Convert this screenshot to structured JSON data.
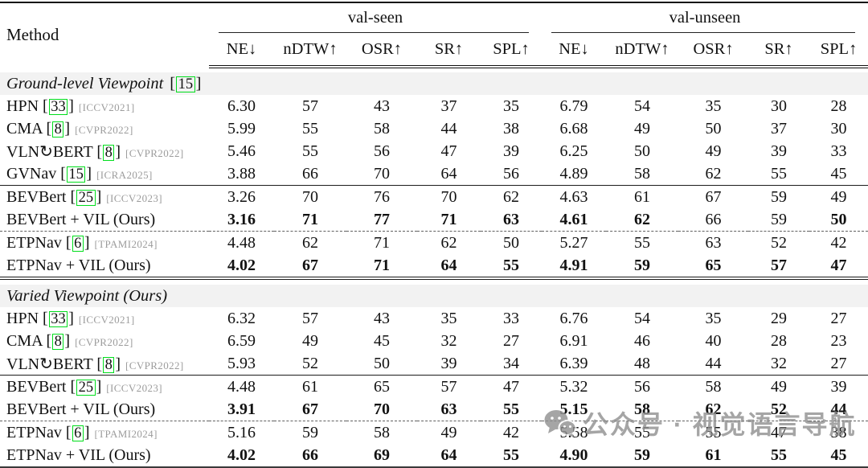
{
  "table": {
    "method_header": "Method",
    "groups": [
      {
        "label": "val-seen"
      },
      {
        "label": "val-unseen"
      }
    ],
    "metrics": [
      "NE↓",
      "nDTW↑",
      "OSR↑",
      "SR↑",
      "SPL↑"
    ],
    "metric_slugs": [
      "ne",
      "ndtw",
      "osr",
      "sr",
      "spl"
    ],
    "cite_box_color": "#00dd1c",
    "section_bg_color": "#f2f2f2",
    "venue_color": "#9c9c9c",
    "sections": [
      {
        "title": "Ground-level Viewpoint",
        "cite": "15",
        "blocks": [
          [
            {
              "name": "HPN",
              "cite": "33",
              "venue": "[ICCV2021]",
              "seen": [
                "6.30",
                "57",
                "43",
                "37",
                "35"
              ],
              "unseen": [
                "6.79",
                "54",
                "35",
                "30",
                "28"
              ]
            },
            {
              "name": "CMA",
              "cite": "8",
              "venue": "[CVPR2022]",
              "seen": [
                "5.99",
                "55",
                "58",
                "44",
                "38"
              ],
              "unseen": [
                "6.68",
                "49",
                "50",
                "37",
                "30"
              ]
            },
            {
              "name": "VLN↻BERT",
              "cite": "8",
              "venue": "[CVPR2022]",
              "seen": [
                "5.46",
                "55",
                "56",
                "47",
                "39"
              ],
              "unseen": [
                "6.25",
                "50",
                "49",
                "39",
                "33"
              ]
            },
            {
              "name": "GVNav",
              "cite": "15",
              "venue": "[ICRA2025]",
              "seen": [
                "3.88",
                "66",
                "70",
                "64",
                "56"
              ],
              "unseen": [
                "4.89",
                "58",
                "62",
                "55",
                "45"
              ]
            }
          ],
          [
            {
              "name": "BEVBert",
              "cite": "25",
              "venue": "[ICCV2023]",
              "seen": [
                "3.26",
                "70",
                "76",
                "70",
                "62"
              ],
              "unseen": [
                "4.63",
                "61",
                "67",
                "59",
                "49"
              ]
            },
            {
              "name": "BEVBert + VIL (Ours)",
              "cite": null,
              "venue": null,
              "seen": [
                "3.16",
                "71",
                "77",
                "71",
                "63"
              ],
              "unseen": [
                "4.61",
                "62",
                "66",
                "59",
                "50"
              ],
              "bold_seen": [
                true,
                true,
                true,
                true,
                true
              ],
              "bold_unseen": [
                true,
                true,
                false,
                false,
                true
              ]
            }
          ],
          [
            {
              "name": "ETPNav",
              "cite": "6",
              "venue": "[TPAMI2024]",
              "seen": [
                "4.48",
                "62",
                "71",
                "62",
                "50"
              ],
              "unseen": [
                "5.27",
                "55",
                "63",
                "52",
                "42"
              ]
            },
            {
              "name": "ETPNav + VIL (Ours)",
              "cite": null,
              "venue": null,
              "seen": [
                "4.02",
                "67",
                "71",
                "64",
                "55"
              ],
              "unseen": [
                "4.91",
                "59",
                "65",
                "57",
                "47"
              ],
              "bold_seen": [
                true,
                true,
                true,
                true,
                true
              ],
              "bold_unseen": [
                true,
                true,
                true,
                true,
                true
              ]
            }
          ]
        ]
      },
      {
        "title": "Varied Viewpoint (Ours)",
        "cite": null,
        "blocks": [
          [
            {
              "name": "HPN",
              "cite": "33",
              "venue": "[ICCV2021]",
              "seen": [
                "6.32",
                "57",
                "43",
                "35",
                "33"
              ],
              "unseen": [
                "6.76",
                "54",
                "35",
                "29",
                "27"
              ]
            },
            {
              "name": "CMA",
              "cite": "8",
              "venue": "[CVPR2022]",
              "seen": [
                "6.59",
                "49",
                "45",
                "32",
                "27"
              ],
              "unseen": [
                "6.91",
                "46",
                "40",
                "28",
                "23"
              ]
            },
            {
              "name": "VLN↻BERT",
              "cite": "8",
              "venue": "[CVPR2022]",
              "seen": [
                "5.93",
                "52",
                "50",
                "39",
                "34"
              ],
              "unseen": [
                "6.39",
                "48",
                "44",
                "32",
                "27"
              ]
            }
          ],
          [
            {
              "name": "BEVBert",
              "cite": "25",
              "venue": "[ICCV2023]",
              "seen": [
                "4.48",
                "61",
                "65",
                "57",
                "47"
              ],
              "unseen": [
                "5.32",
                "56",
                "58",
                "49",
                "39"
              ]
            },
            {
              "name": "BEVBert + VIL (Ours)",
              "cite": null,
              "venue": null,
              "seen": [
                "3.91",
                "67",
                "70",
                "63",
                "55"
              ],
              "unseen": [
                "5.15",
                "58",
                "62",
                "52",
                "44"
              ],
              "bold_seen": [
                true,
                true,
                true,
                true,
                true
              ],
              "bold_unseen": [
                true,
                true,
                true,
                true,
                true
              ]
            }
          ],
          [
            {
              "name": "ETPNav",
              "cite": "6",
              "venue": "[TPAMI2024]",
              "seen": [
                "5.16",
                "59",
                "58",
                "49",
                "42"
              ],
              "unseen": [
                "5.58",
                "55",
                "55",
                "47",
                "38"
              ]
            },
            {
              "name": "ETPNav + VIL (Ours)",
              "cite": null,
              "venue": null,
              "seen": [
                "4.02",
                "66",
                "69",
                "64",
                "55"
              ],
              "unseen": [
                "4.90",
                "59",
                "61",
                "55",
                "45"
              ],
              "bold_seen": [
                true,
                true,
                true,
                true,
                true
              ],
              "bold_unseen": [
                true,
                true,
                true,
                true,
                true
              ]
            }
          ]
        ]
      }
    ]
  },
  "watermark": {
    "text": "公众号 · 视觉语言导航"
  }
}
